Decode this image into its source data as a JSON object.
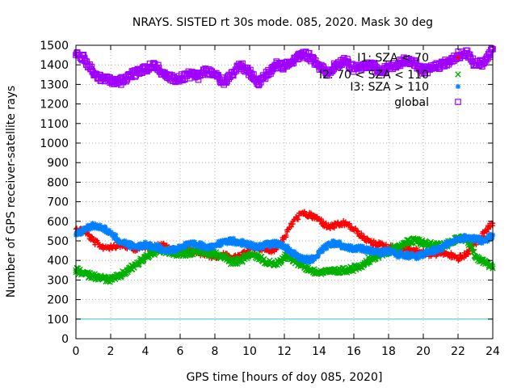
{
  "chart_data": {
    "type": "scatter",
    "title": "NRAYS. SISTED rt 30s mode. 085, 2020. Mask 30 deg",
    "xlabel": "GPS time [hours of doy 085, 2020]",
    "ylabel": "Number of GPS receiver-satellite rays",
    "xlim": [
      0,
      24
    ],
    "ylim": [
      0,
      1500
    ],
    "x_ticks": [
      0,
      2,
      4,
      6,
      8,
      10,
      12,
      14,
      16,
      18,
      20,
      22,
      24
    ],
    "y_ticks": [
      0,
      100,
      200,
      300,
      400,
      500,
      600,
      700,
      800,
      900,
      1000,
      1100,
      1200,
      1300,
      1400,
      1500
    ],
    "grid": true,
    "legend_position": "top-right",
    "reference_line": {
      "y": 100,
      "color": "#40c0e0"
    },
    "series": [
      {
        "name": "I1: SZA < 70",
        "marker": "plus",
        "color": "#ff0000",
        "x": [
          0,
          0.5,
          1,
          1.5,
          2,
          2.5,
          3,
          3.5,
          4,
          4.5,
          5,
          5.5,
          6,
          6.5,
          7,
          7.5,
          8,
          8.5,
          9,
          9.5,
          10,
          10.5,
          11,
          11.5,
          12,
          12.5,
          13,
          13.5,
          14,
          14.5,
          15,
          15.5,
          16,
          16.5,
          17,
          17.5,
          18,
          18.5,
          19,
          19.5,
          20,
          20.5,
          21,
          21.5,
          22,
          22.5,
          23,
          23.5,
          24
        ],
        "y": [
          560,
          550,
          500,
          470,
          470,
          480,
          470,
          460,
          470,
          470,
          480,
          450,
          440,
          450,
          440,
          430,
          420,
          430,
          410,
          420,
          460,
          470,
          450,
          460,
          520,
          600,
          640,
          630,
          610,
          570,
          580,
          590,
          560,
          520,
          490,
          480,
          470,
          460,
          460,
          450,
          440,
          430,
          440,
          430,
          410,
          430,
          490,
          540,
          590
        ]
      },
      {
        "name": "I2: 70 < SZA < 110",
        "marker": "cross",
        "color": "#00b000",
        "x": [
          0,
          0.5,
          1,
          1.5,
          2,
          2.5,
          3,
          3.5,
          4,
          4.5,
          5,
          5.5,
          6,
          6.5,
          7,
          7.5,
          8,
          8.5,
          9,
          9.5,
          10,
          10.5,
          11,
          11.5,
          12,
          12.5,
          13,
          13.5,
          14,
          14.5,
          15,
          15.5,
          16,
          16.5,
          17,
          17.5,
          18,
          18.5,
          19,
          19.5,
          20,
          20.5,
          21,
          21.5,
          22,
          22.5,
          23,
          23.5,
          24
        ],
        "y": [
          350,
          330,
          320,
          310,
          300,
          320,
          350,
          380,
          420,
          440,
          450,
          440,
          430,
          440,
          450,
          440,
          430,
          420,
          390,
          400,
          430,
          420,
          390,
          380,
          420,
          400,
          380,
          350,
          340,
          340,
          345,
          350,
          360,
          380,
          410,
          430,
          450,
          470,
          490,
          500,
          490,
          480,
          470,
          490,
          520,
          510,
          420,
          390,
          360
        ]
      },
      {
        "name": "I3: SZA > 110",
        "marker": "star",
        "color": "#0080ff",
        "x": [
          0,
          0.5,
          1,
          1.5,
          2,
          2.5,
          3,
          3.5,
          4,
          4.5,
          5,
          5.5,
          6,
          6.5,
          7,
          7.5,
          8,
          8.5,
          9,
          9.5,
          10,
          10.5,
          11,
          11.5,
          12,
          12.5,
          13,
          13.5,
          14,
          14.5,
          15,
          15.5,
          16,
          16.5,
          17,
          17.5,
          18,
          18.5,
          19,
          19.5,
          20,
          20.5,
          21,
          21.5,
          22,
          22.5,
          23,
          23.5,
          24
        ],
        "y": [
          530,
          560,
          580,
          570,
          540,
          500,
          480,
          470,
          480,
          470,
          460,
          450,
          470,
          480,
          480,
          470,
          480,
          490,
          500,
          490,
          480,
          470,
          480,
          490,
          470,
          440,
          410,
          400,
          440,
          480,
          490,
          470,
          460,
          460,
          450,
          440,
          450,
          430,
          430,
          420,
          430,
          450,
          460,
          490,
          510,
          520,
          510,
          500,
          530
        ]
      },
      {
        "name": "global",
        "marker": "square",
        "color": "#a000ff",
        "x": [
          0,
          0.5,
          1,
          1.5,
          2,
          2.5,
          3,
          3.5,
          4,
          4.5,
          5,
          5.5,
          6,
          6.5,
          7,
          7.5,
          8,
          8.5,
          9,
          9.5,
          10,
          10.5,
          11,
          11.5,
          12,
          12.5,
          13,
          13.5,
          14,
          14.5,
          15,
          15.5,
          16,
          16.5,
          17,
          17.5,
          18,
          18.5,
          19,
          19.5,
          20,
          20.5,
          21,
          21.5,
          22,
          22.5,
          23,
          23.5,
          24
        ],
        "y": [
          1450,
          1430,
          1360,
          1330,
          1320,
          1310,
          1340,
          1360,
          1380,
          1400,
          1360,
          1330,
          1330,
          1350,
          1340,
          1370,
          1350,
          1310,
          1350,
          1400,
          1360,
          1300,
          1350,
          1400,
          1390,
          1420,
          1460,
          1440,
          1390,
          1360,
          1400,
          1420,
          1380,
          1390,
          1400,
          1360,
          1390,
          1400,
          1430,
          1410,
          1370,
          1380,
          1400,
          1420,
          1450,
          1460,
          1400,
          1410,
          1480
        ]
      }
    ]
  }
}
